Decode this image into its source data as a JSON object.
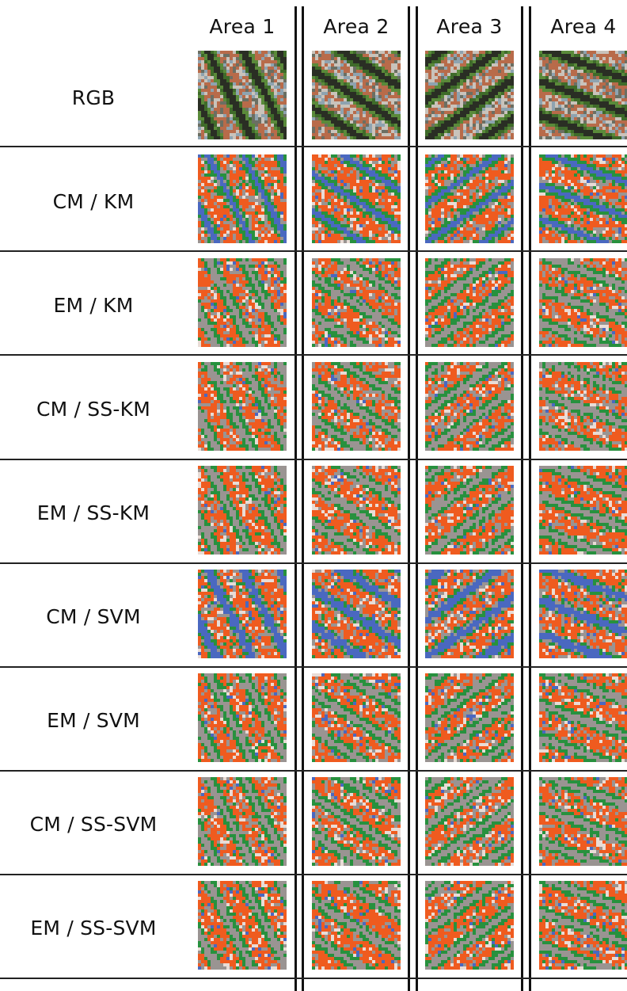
{
  "columns": [
    "Area 1",
    "Area 2",
    "Area 3",
    "Area 4"
  ],
  "rows": [
    {
      "label": "RGB",
      "kind": "photo"
    },
    {
      "label": "CM / KM",
      "kind": "classmap"
    },
    {
      "label": "EM / KM",
      "kind": "classmap"
    },
    {
      "label": "CM / SS-KM",
      "kind": "classmap"
    },
    {
      "label": "EM / SS-KM",
      "kind": "classmap"
    },
    {
      "label": "CM / SVM",
      "kind": "classmap"
    },
    {
      "label": "EM / SVM",
      "kind": "classmap"
    },
    {
      "label": "CM / SS-SVM",
      "kind": "classmap"
    },
    {
      "label": "EM / SS-SVM",
      "kind": "classmap"
    }
  ],
  "class_colors": {
    "building": "#ef5b1f",
    "vegetation": "#27913e",
    "water": "#4a68c0",
    "road": "#9a9492",
    "bare": "#e9dcd6"
  },
  "photo_colors": [
    "#2a2e24",
    "#3f6b2a",
    "#5a8a3a",
    "#b86b4a",
    "#c9c3bb",
    "#8ea3b0",
    "#6b6f63"
  ]
}
